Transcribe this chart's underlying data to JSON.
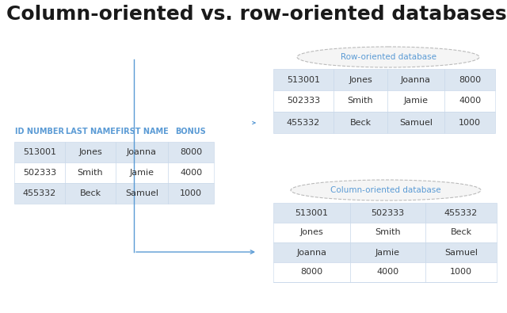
{
  "title": "Column-oriented vs. row-oriented databases",
  "title_fontsize": 18,
  "title_color": "#1a1a1a",
  "title_fontweight": "bold",
  "bg_color": "#ffffff",
  "left_table_headers": [
    "ID NUMBER",
    "LAST NAME",
    "FIRST NAME",
    "BONUS"
  ],
  "left_table_header_color": "#5b9bd5",
  "left_table_rows": [
    [
      "513001",
      "Jones",
      "Joanna",
      "8000"
    ],
    [
      "502333",
      "Smith",
      "Jamie",
      "4000"
    ],
    [
      "455332",
      "Beck",
      "Samuel",
      "1000"
    ]
  ],
  "row_db_label": "Row-oriented database",
  "row_db_table": [
    [
      "513001",
      "Jones",
      "Joanna",
      "8000"
    ],
    [
      "502333",
      "Smith",
      "Jamie",
      "4000"
    ],
    [
      "455332",
      "Beck",
      "Samuel",
      "1000"
    ]
  ],
  "col_db_label": "Column-oriented database",
  "col_db_table": [
    [
      "513001",
      "502333",
      "455332"
    ],
    [
      "Jones",
      "Smith",
      "Beck"
    ],
    [
      "Joanna",
      "Jamie",
      "Samuel"
    ],
    [
      "8000",
      "4000",
      "1000"
    ]
  ],
  "cell_bg_even": "#dce6f1",
  "cell_bg_odd": "#ffffff",
  "cell_border_color": "#c5d5e8",
  "cell_text_color": "#333333",
  "ellipse_edge_color": "#bbbbbb",
  "ellipse_fill_color": "#f5f5f5",
  "label_color": "#5b9bd5",
  "line_color": "#5b9bd5",
  "header_fontsize": 7.0,
  "cell_fontsize": 8.0,
  "label_fontsize": 7.5
}
